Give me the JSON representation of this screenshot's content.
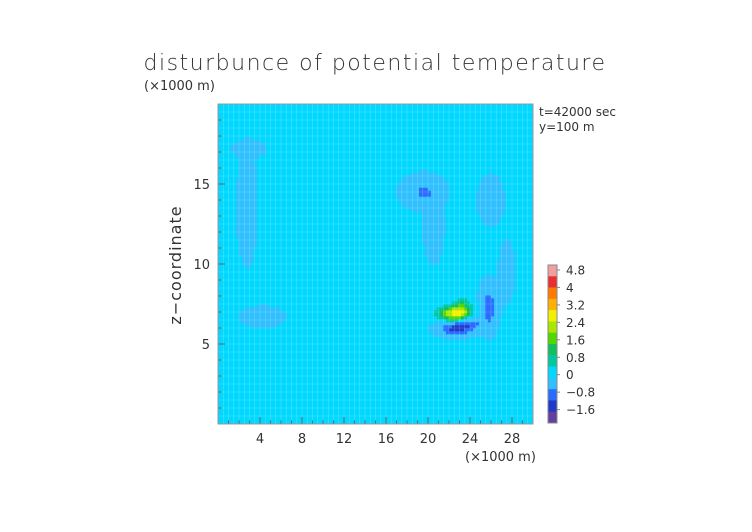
{
  "chart_data": {
    "type": "heatmap",
    "title": "disturbunce of potential temperature",
    "unit_label_top": "(×1000 m)",
    "unit_label_bottom": "(×1000 m)",
    "ylabel": "z−coordinate",
    "annotations": [
      "t=42000 sec",
      "y=100 m"
    ],
    "x_ticks": [
      "4",
      "8",
      "12",
      "16",
      "20",
      "24",
      "28"
    ],
    "y_ticks": [
      "5",
      "10",
      "15"
    ],
    "xlim": [
      0,
      30
    ],
    "ylim": [
      0,
      20
    ],
    "colorbar": {
      "labels": [
        "4.8",
        "4",
        "3.2",
        "2.4",
        "1.6",
        "0.8",
        "0",
        "−0.8",
        "−1.6"
      ],
      "colors": [
        "#f0a0a0",
        "#e83030",
        "#ff7a00",
        "#ffb000",
        "#f0f000",
        "#a8e800",
        "#50d800",
        "#10c060",
        "#00c8a0",
        "#00d8ff",
        "#30c0ff",
        "#2a6cff",
        "#2038c8",
        "#6040a0"
      ],
      "range": [
        -2.0,
        5.2
      ]
    },
    "background_value": 0.1,
    "features": [
      {
        "type": "warm",
        "x": 22.5,
        "z": 6.9,
        "sx": 1.5,
        "sz": 0.45,
        "amp": 2.6
      },
      {
        "type": "warm",
        "x": 23.2,
        "z": 7.3,
        "sx": 0.8,
        "sz": 0.6,
        "amp": 1.0
      },
      {
        "type": "cold",
        "x": 22.6,
        "z": 6.0,
        "sx": 1.4,
        "sz": 0.4,
        "amp": -1.3
      },
      {
        "type": "cold",
        "x": 25.8,
        "z": 7.3,
        "sx": 0.7,
        "sz": 1.2,
        "amp": -0.9
      },
      {
        "type": "cold",
        "x": 24.0,
        "z": 6.3,
        "sx": 1.0,
        "sz": 0.5,
        "amp": -0.8
      },
      {
        "type": "cold",
        "x": 19.5,
        "z": 14.5,
        "sx": 1.6,
        "sz": 0.8,
        "amp": -0.6
      },
      {
        "type": "cold",
        "x": 20.5,
        "z": 12.3,
        "sx": 0.7,
        "sz": 1.6,
        "amp": -0.5
      },
      {
        "type": "cold",
        "x": 2.8,
        "z": 13.5,
        "sx": 0.7,
        "sz": 2.5,
        "amp": -0.45
      },
      {
        "type": "cold",
        "x": 4.2,
        "z": 6.7,
        "sx": 1.5,
        "sz": 0.45,
        "amp": -0.5
      },
      {
        "type": "cold",
        "x": 3.0,
        "z": 17.2,
        "sx": 1.2,
        "sz": 0.4,
        "amp": -0.35
      },
      {
        "type": "cold",
        "x": 26.0,
        "z": 14.0,
        "sx": 1.0,
        "sz": 1.2,
        "amp": -0.3
      },
      {
        "type": "cold",
        "x": 27.5,
        "z": 9.5,
        "sx": 0.6,
        "sz": 1.5,
        "amp": -0.3
      },
      {
        "type": "warm",
        "x": 13.5,
        "z": 17.8,
        "sx": 4.0,
        "sz": 0.6,
        "amp": 0.3
      },
      {
        "type": "warm",
        "x": 25.5,
        "z": 18.7,
        "sx": 2.5,
        "sz": 0.5,
        "amp": 0.35
      },
      {
        "type": "warm",
        "x": 16.0,
        "z": 9.5,
        "sx": 2.5,
        "sz": 2.5,
        "amp": 0.15
      },
      {
        "type": "warm",
        "x": 8.0,
        "z": 12.0,
        "sx": 2.5,
        "sz": 2.0,
        "amp": 0.12
      }
    ]
  }
}
